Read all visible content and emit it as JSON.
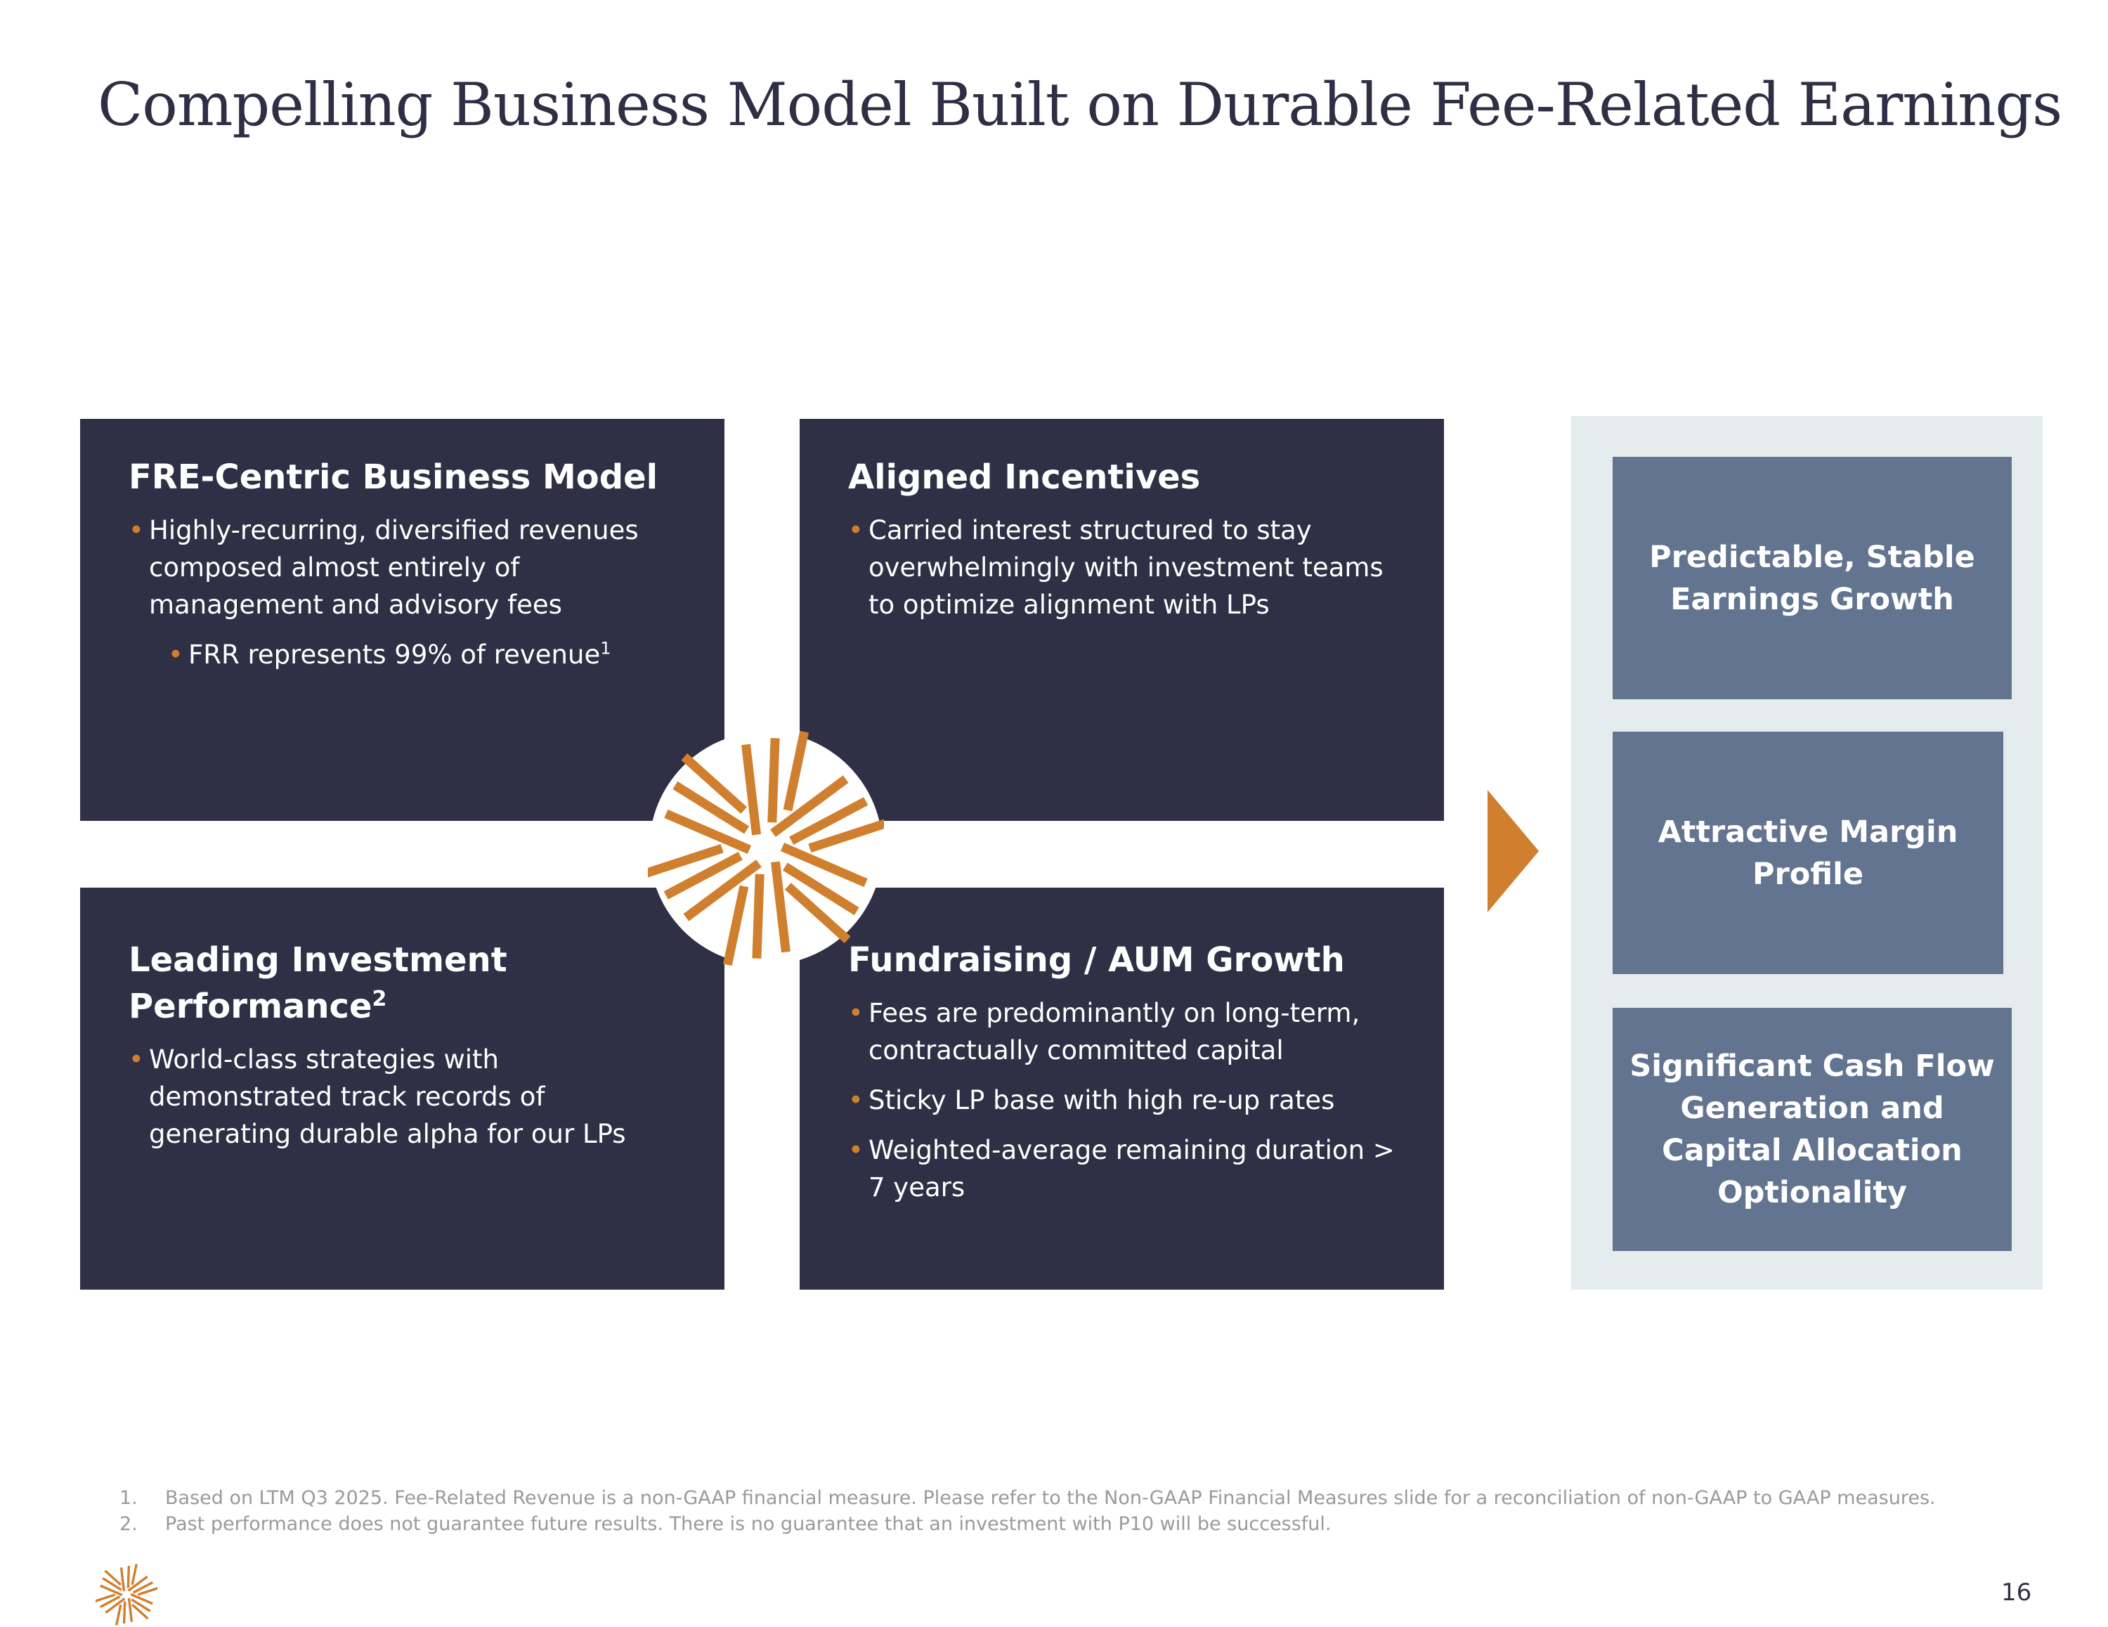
{
  "title": "Compelling Business Model Built on Durable Fee-Related Earnings",
  "colors": {
    "navy": "#2f3045",
    "orange": "#d07f2f",
    "panel": "#e5eced",
    "slate": "#627490"
  },
  "quadrants": [
    {
      "heading": "FRE-Centric Business Model",
      "bullets": [
        "Highly-recurring, diversified revenues composed almost entirely of management and advisory fees"
      ],
      "sub_bullet": "FRR represents 99% of revenue",
      "sub_sup": "1"
    },
    {
      "heading": "Aligned Incentives",
      "bullets": [
        "Carried interest structured to stay overwhelmingly with investment teams to optimize alignment with LPs"
      ]
    },
    {
      "heading": "Leading Investment Performance",
      "heading_sup": "2",
      "bullets": [
        "World-class strategies with demonstrated track records of generating durable alpha for our LPs"
      ]
    },
    {
      "heading": "Fundraising / AUM Growth",
      "bullets": [
        "Fees are predominantly on long-term, contractually committed capital",
        "Sticky LP base with high re-up rates",
        "Weighted-average remaining duration > 7 years"
      ]
    }
  ],
  "outcomes": [
    "Predictable, Stable Earnings Growth",
    "Attractive Margin Profile",
    "Significant Cash Flow Generation and Capital Allocation Optionality"
  ],
  "footnotes": [
    {
      "num": "1.",
      "text": "Based on LTM Q3 2025. Fee-Related Revenue is a non-GAAP financial measure. Please refer to the Non-GAAP Financial Measures slide for a reconciliation of non-GAAP to GAAP measures."
    },
    {
      "num": "2.",
      "text": "Past performance does not guarantee future results. There is no guarantee that an investment with P10 will be successful."
    }
  ],
  "page_number": "16",
  "icons": {
    "logo": "p10-starburst-logo",
    "arrow": "right-triangle-arrow"
  }
}
